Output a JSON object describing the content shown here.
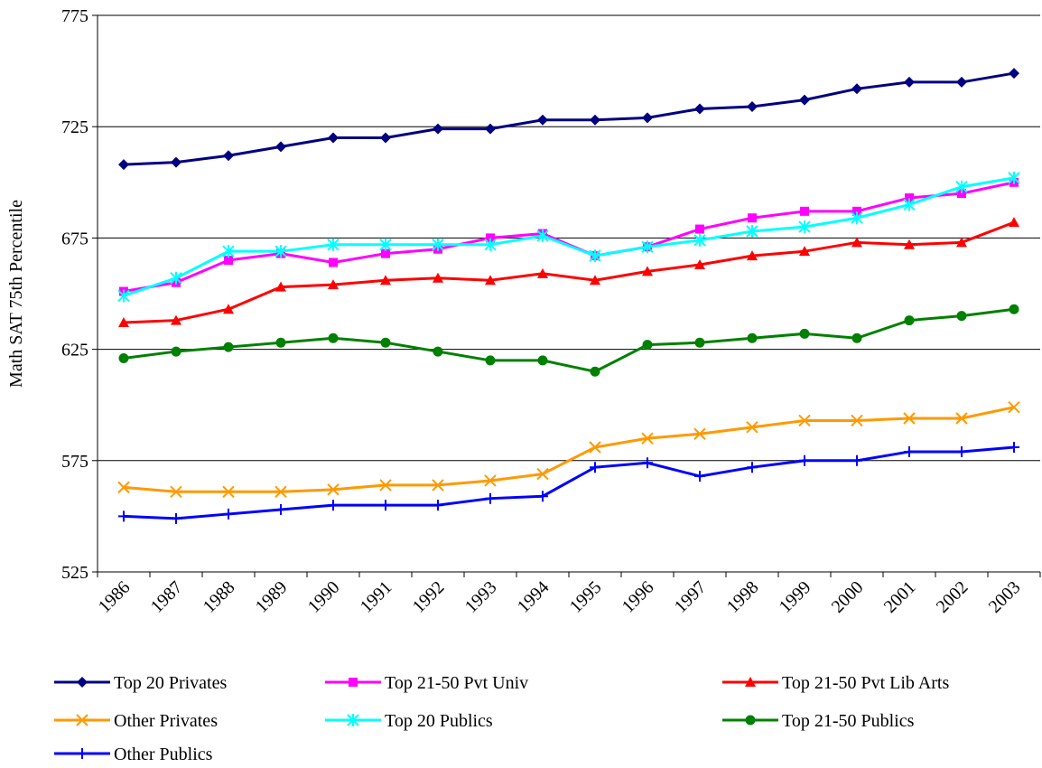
{
  "chart_data": {
    "type": "line",
    "y_label": "Math SAT 75th Percentile",
    "categories": [
      "1986",
      "1987",
      "1988",
      "1989",
      "1990",
      "1991",
      "1992",
      "1993",
      "1994",
      "1995",
      "1996",
      "1997",
      "1998",
      "1999",
      "2000",
      "2001",
      "2002",
      "2003"
    ],
    "ylim": [
      525,
      775
    ],
    "yticks": [
      525,
      575,
      625,
      675,
      725,
      775
    ],
    "grid": true,
    "series": [
      {
        "name": "Top 20 Privates",
        "color": "#000080",
        "marker": "diamond",
        "values": [
          708,
          709,
          712,
          716,
          720,
          720,
          724,
          724,
          728,
          728,
          729,
          733,
          734,
          737,
          742,
          745,
          745,
          749
        ]
      },
      {
        "name": "Top 21-50 Pvt Univ",
        "color": "#ff00ff",
        "marker": "square",
        "values": [
          651,
          655,
          665,
          668,
          664,
          668,
          670,
          675,
          677,
          667,
          671,
          679,
          684,
          687,
          687,
          693,
          695,
          700
        ]
      },
      {
        "name": "Top 21-50 Pvt Lib Arts",
        "color": "#ff0000",
        "marker": "triangle",
        "values": [
          637,
          638,
          643,
          653,
          654,
          656,
          657,
          656,
          659,
          656,
          660,
          663,
          667,
          669,
          673,
          672,
          673,
          682
        ]
      },
      {
        "name": "Other Privates",
        "color": "#ff9900",
        "marker": "x",
        "values": [
          563,
          561,
          561,
          561,
          562,
          564,
          564,
          566,
          569,
          581,
          585,
          587,
          590,
          593,
          593,
          594,
          594,
          599
        ]
      },
      {
        "name": "Top 20 Publics",
        "color": "#00ffff",
        "marker": "asterisk",
        "values": [
          649,
          657,
          669,
          669,
          672,
          672,
          672,
          672,
          676,
          667,
          671,
          674,
          678,
          680,
          684,
          690,
          698,
          702
        ]
      },
      {
        "name": "Top 21-50 Publics",
        "color": "#008000",
        "marker": "circle",
        "values": [
          621,
          624,
          626,
          628,
          630,
          628,
          624,
          620,
          620,
          615,
          627,
          628,
          630,
          632,
          630,
          638,
          640,
          643
        ]
      },
      {
        "name": "Other Publics",
        "color": "#0000ff",
        "marker": "plus",
        "values": [
          550,
          549,
          551,
          553,
          555,
          555,
          555,
          558,
          559,
          572,
          574,
          568,
          572,
          575,
          575,
          579,
          579,
          581
        ]
      }
    ]
  }
}
